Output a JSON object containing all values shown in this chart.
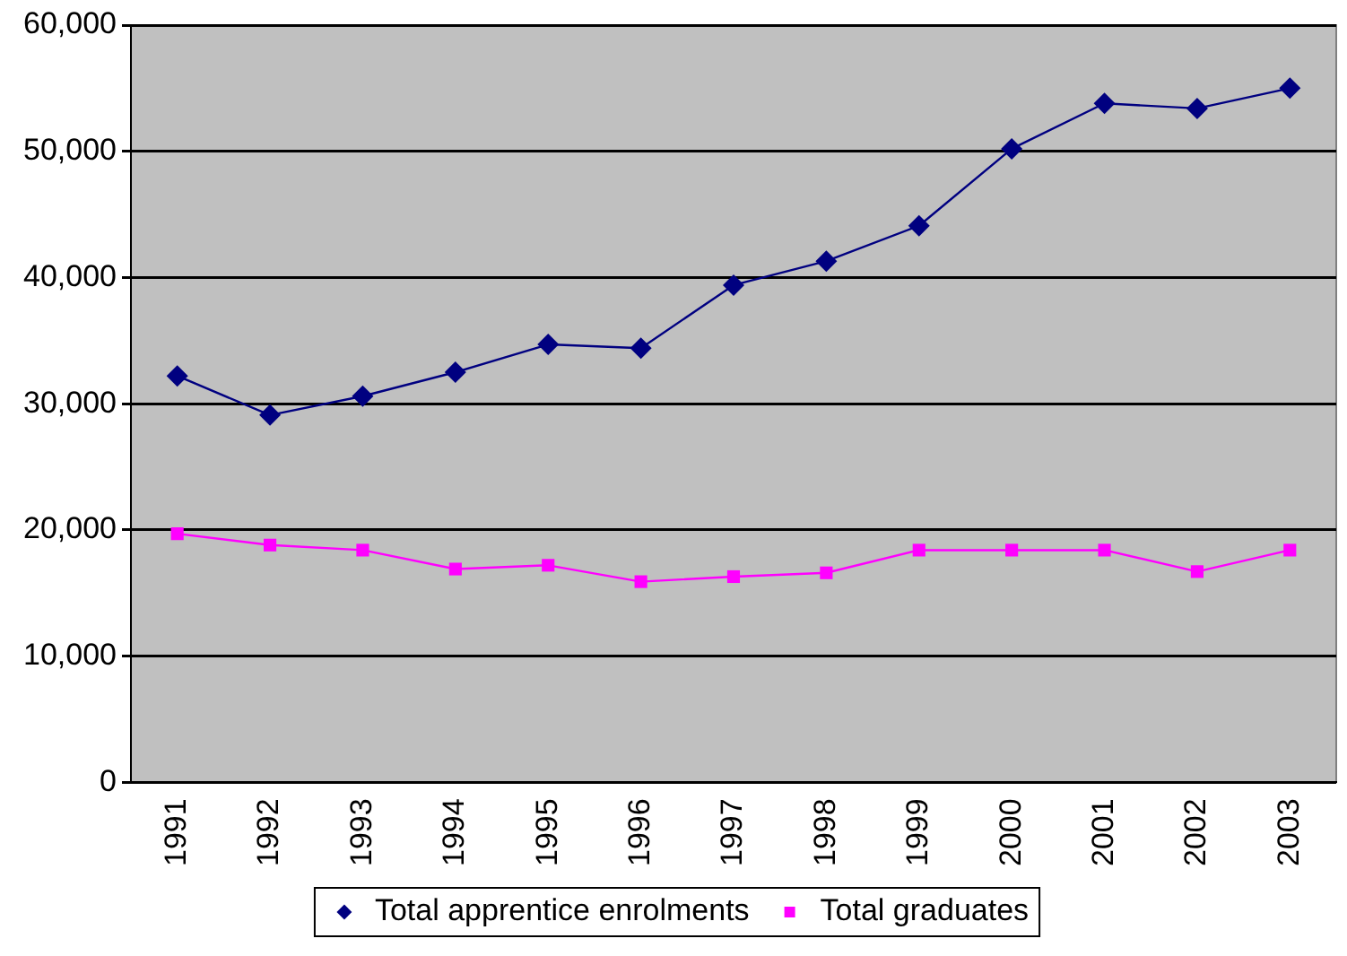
{
  "chart_data": {
    "type": "line",
    "categories": [
      "1991",
      "1992",
      "1993",
      "1994",
      "1995",
      "1996",
      "1997",
      "1998",
      "1999",
      "2000",
      "2001",
      "2002",
      "2003"
    ],
    "series": [
      {
        "name": "Total apprentice enrolments",
        "color": "#000080",
        "marker": "diamond",
        "values": [
          32200,
          29100,
          30600,
          32500,
          34700,
          34400,
          39400,
          41300,
          44100,
          50200,
          53800,
          53400,
          55000
        ]
      },
      {
        "name": "Total graduates",
        "color": "#ff00ff",
        "marker": "square",
        "values": [
          19700,
          18800,
          18400,
          16900,
          17200,
          15900,
          16300,
          16600,
          18400,
          18400,
          18400,
          16700,
          18400
        ]
      }
    ],
    "ylim": [
      0,
      60000
    ],
    "yticks": [
      0,
      {
        "value": 10000,
        "label": "10,000"
      },
      {
        "value": 20000,
        "label": "20,000"
      },
      {
        "value": 30000,
        "label": "30,000"
      },
      {
        "value": 40000,
        "label": "40,000"
      },
      {
        "value": 50000,
        "label": "50,000"
      },
      {
        "value": 60000,
        "label": "60,000"
      }
    ],
    "grid": "y",
    "legend": "bottom"
  }
}
